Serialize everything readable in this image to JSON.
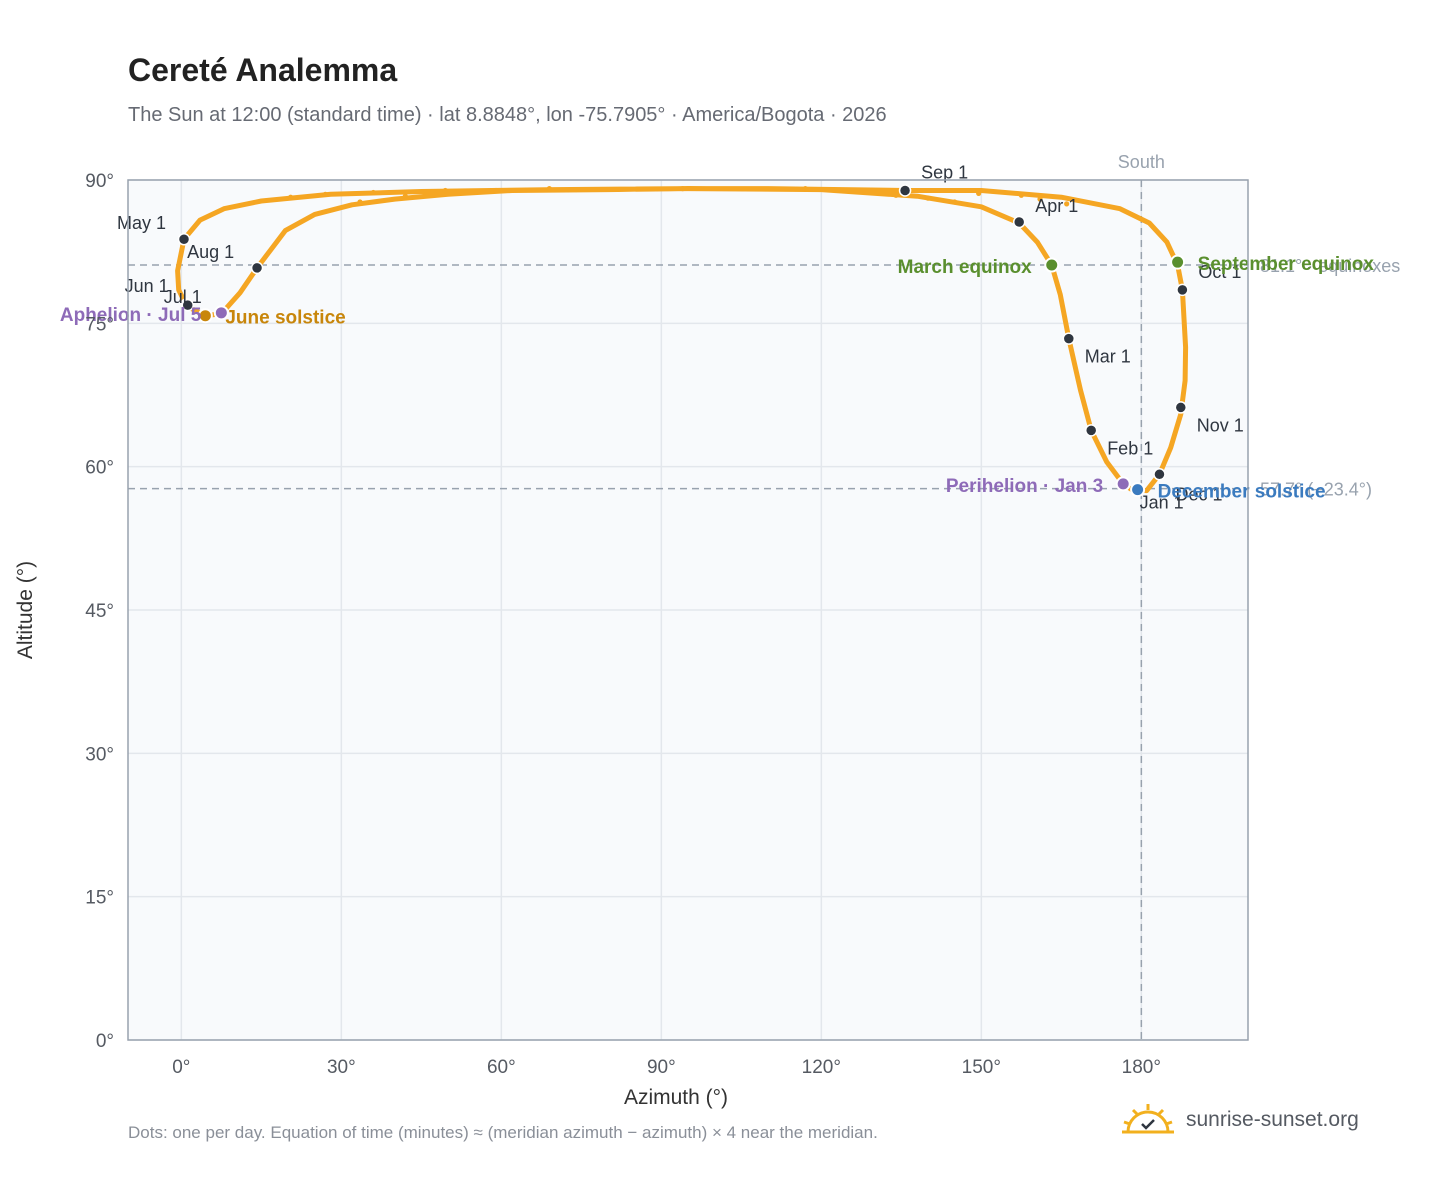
{
  "title": "Cereté Analemma",
  "subtitle": "The Sun at 12:00 (standard time) · lat 8.8848°, lon -75.7905° · America/Bogota · 2026",
  "footnote": "Dots: one per day. Equation of time (minutes) ≈ (meridian azimuth − azimuth) × 4 near the meridian.",
  "brand": {
    "name": "sunrise-sunset.org",
    "icon": "sun-logo-icon"
  },
  "colors": {
    "curve": "#f5a623",
    "month_marker": "#2f3640",
    "equinox": "#5a8f2e",
    "june_solstice": "#c8860b",
    "december_solstice": "#3b7bbf",
    "perihelion_aphelion": "#8e6bb8",
    "reference": "#98a2ae",
    "plot_bg": "#f8fafc",
    "grid": "#e3e7ec"
  },
  "chart_data": {
    "type": "scatter",
    "xlabel": "Azimuth (°)",
    "ylabel": "Altitude (°)",
    "xlim": [
      -10,
      200
    ],
    "ylim": [
      0,
      90
    ],
    "x_ticks": [
      "0°",
      "30°",
      "60°",
      "90°",
      "120°",
      "150°",
      "180°"
    ],
    "y_ticks": [
      "0°",
      "15°",
      "30°",
      "45°",
      "60°",
      "75°",
      "90°"
    ],
    "grid": true,
    "meridian": {
      "azimuth": 180,
      "label": "South"
    },
    "reference_lines": [
      {
        "altitude": 81.1,
        "label": "81.1° · equinoxes"
      },
      {
        "altitude": 57.7,
        "label": "57.7° (−23.4°)"
      }
    ],
    "path_points": [
      {
        "x": 178.2,
        "y": 57.6
      },
      {
        "x": 181.0,
        "y": 57.5
      },
      {
        "x": 183.4,
        "y": 59.2
      },
      {
        "x": 185.5,
        "y": 62.0
      },
      {
        "x": 187.4,
        "y": 65.5
      },
      {
        "x": 188.2,
        "y": 69.0
      },
      {
        "x": 188.3,
        "y": 72.5
      },
      {
        "x": 188.0,
        "y": 75.5
      },
      {
        "x": 187.7,
        "y": 78.5
      },
      {
        "x": 186.8,
        "y": 81.1
      },
      {
        "x": 184.8,
        "y": 83.5
      },
      {
        "x": 181.5,
        "y": 85.5
      },
      {
        "x": 176.0,
        "y": 87.0
      },
      {
        "x": 165.0,
        "y": 88.2
      },
      {
        "x": 150.0,
        "y": 88.9
      },
      {
        "x": 136.0,
        "y": 88.9
      },
      {
        "x": 124.0,
        "y": 89.0
      },
      {
        "x": 110.0,
        "y": 89.1
      },
      {
        "x": 95.0,
        "y": 89.1
      },
      {
        "x": 80.0,
        "y": 89.0
      },
      {
        "x": 62.0,
        "y": 88.9
      },
      {
        "x": 50.0,
        "y": 88.5
      },
      {
        "x": 40.0,
        "y": 88.0
      },
      {
        "x": 32.0,
        "y": 87.4
      },
      {
        "x": 25.0,
        "y": 86.4
      },
      {
        "x": 19.5,
        "y": 84.7
      },
      {
        "x": 16.5,
        "y": 82.5
      },
      {
        "x": 14.2,
        "y": 80.8
      },
      {
        "x": 11.0,
        "y": 78.2
      },
      {
        "x": 7.5,
        "y": 76.0
      },
      {
        "x": 4.5,
        "y": 75.8
      },
      {
        "x": 1.0,
        "y": 76.8
      },
      {
        "x": -0.5,
        "y": 78.5
      },
      {
        "x": -0.7,
        "y": 80.5
      },
      {
        "x": 0.5,
        "y": 83.8
      },
      {
        "x": 3.5,
        "y": 85.8
      },
      {
        "x": 8.0,
        "y": 87.0
      },
      {
        "x": 15.0,
        "y": 87.8
      },
      {
        "x": 28.0,
        "y": 88.5
      },
      {
        "x": 45.0,
        "y": 88.8
      },
      {
        "x": 70.0,
        "y": 89.0
      },
      {
        "x": 95.0,
        "y": 89.1
      },
      {
        "x": 120.0,
        "y": 89.0
      },
      {
        "x": 138.0,
        "y": 88.3
      },
      {
        "x": 150.0,
        "y": 87.2
      },
      {
        "x": 157.1,
        "y": 85.5
      },
      {
        "x": 160.5,
        "y": 83.5
      },
      {
        "x": 163.2,
        "y": 81.1
      },
      {
        "x": 164.8,
        "y": 78.0
      },
      {
        "x": 166.4,
        "y": 73.4
      },
      {
        "x": 168.6,
        "y": 68.0
      },
      {
        "x": 170.6,
        "y": 63.8
      },
      {
        "x": 173.5,
        "y": 60.5
      },
      {
        "x": 176.6,
        "y": 58.2
      },
      {
        "x": 178.2,
        "y": 57.6
      }
    ],
    "sparse_dots": [
      {
        "x": 27.0,
        "y": 88.5
      },
      {
        "x": 36.0,
        "y": 88.7
      },
      {
        "x": 49.5,
        "y": 88.9
      },
      {
        "x": 59.0,
        "y": 88.9
      },
      {
        "x": 69.0,
        "y": 89.1
      },
      {
        "x": 74.0,
        "y": 89.0
      },
      {
        "x": 94.0,
        "y": 89.1
      },
      {
        "x": 117.0,
        "y": 89.1
      },
      {
        "x": 134.0,
        "y": 88.4
      },
      {
        "x": 149.5,
        "y": 88.6
      },
      {
        "x": 157.5,
        "y": 88.4
      },
      {
        "x": 161.0,
        "y": 88.0
      },
      {
        "x": 166.0,
        "y": 87.5
      },
      {
        "x": 33.5,
        "y": 87.7
      },
      {
        "x": 20.5,
        "y": 88.2
      },
      {
        "x": 42.0,
        "y": 88.3
      },
      {
        "x": 47.5,
        "y": 88.5
      },
      {
        "x": 140.0,
        "y": 88.1
      },
      {
        "x": 145.0,
        "y": 87.7
      }
    ],
    "month_markers": [
      {
        "label": "Jan 1",
        "x": 179.3,
        "y": 57.7
      },
      {
        "label": "Feb 1",
        "x": 170.6,
        "y": 63.8
      },
      {
        "label": "Mar 1",
        "x": 166.4,
        "y": 73.4
      },
      {
        "label": "Apr 1",
        "x": 157.1,
        "y": 85.6
      },
      {
        "label": "May 1",
        "x": 0.5,
        "y": 83.8
      },
      {
        "label": "Jun 1",
        "x": 1.0,
        "y": 77.0
      },
      {
        "label": "Jul 1",
        "x": 1.2,
        "y": 76.9
      },
      {
        "label": "Aug 1",
        "x": 14.2,
        "y": 80.8
      },
      {
        "label": "Sep 1",
        "x": 135.7,
        "y": 88.9
      },
      {
        "label": "Oct 1",
        "x": 187.7,
        "y": 78.5
      },
      {
        "label": "Nov 1",
        "x": 187.4,
        "y": 66.2
      },
      {
        "label": "Dec 1",
        "x": 183.4,
        "y": 59.2
      }
    ],
    "events": [
      {
        "label": "March equinox",
        "x": 163.2,
        "y": 81.1,
        "color_key": "equinox"
      },
      {
        "label": "September equinox",
        "x": 186.8,
        "y": 81.4,
        "color_key": "equinox"
      },
      {
        "label": "June solstice",
        "x": 4.5,
        "y": 75.8,
        "color_key": "june_solstice"
      },
      {
        "label": "December solstice",
        "x": 179.3,
        "y": 57.6,
        "color_key": "december_solstice"
      },
      {
        "label": "Perihelion · Jan 3",
        "x": 176.6,
        "y": 58.2,
        "color_key": "perihelion_aphelion"
      },
      {
        "label": "Aphelion · Jul 5",
        "x": 7.5,
        "y": 76.1,
        "color_key": "perihelion_aphelion"
      }
    ]
  }
}
